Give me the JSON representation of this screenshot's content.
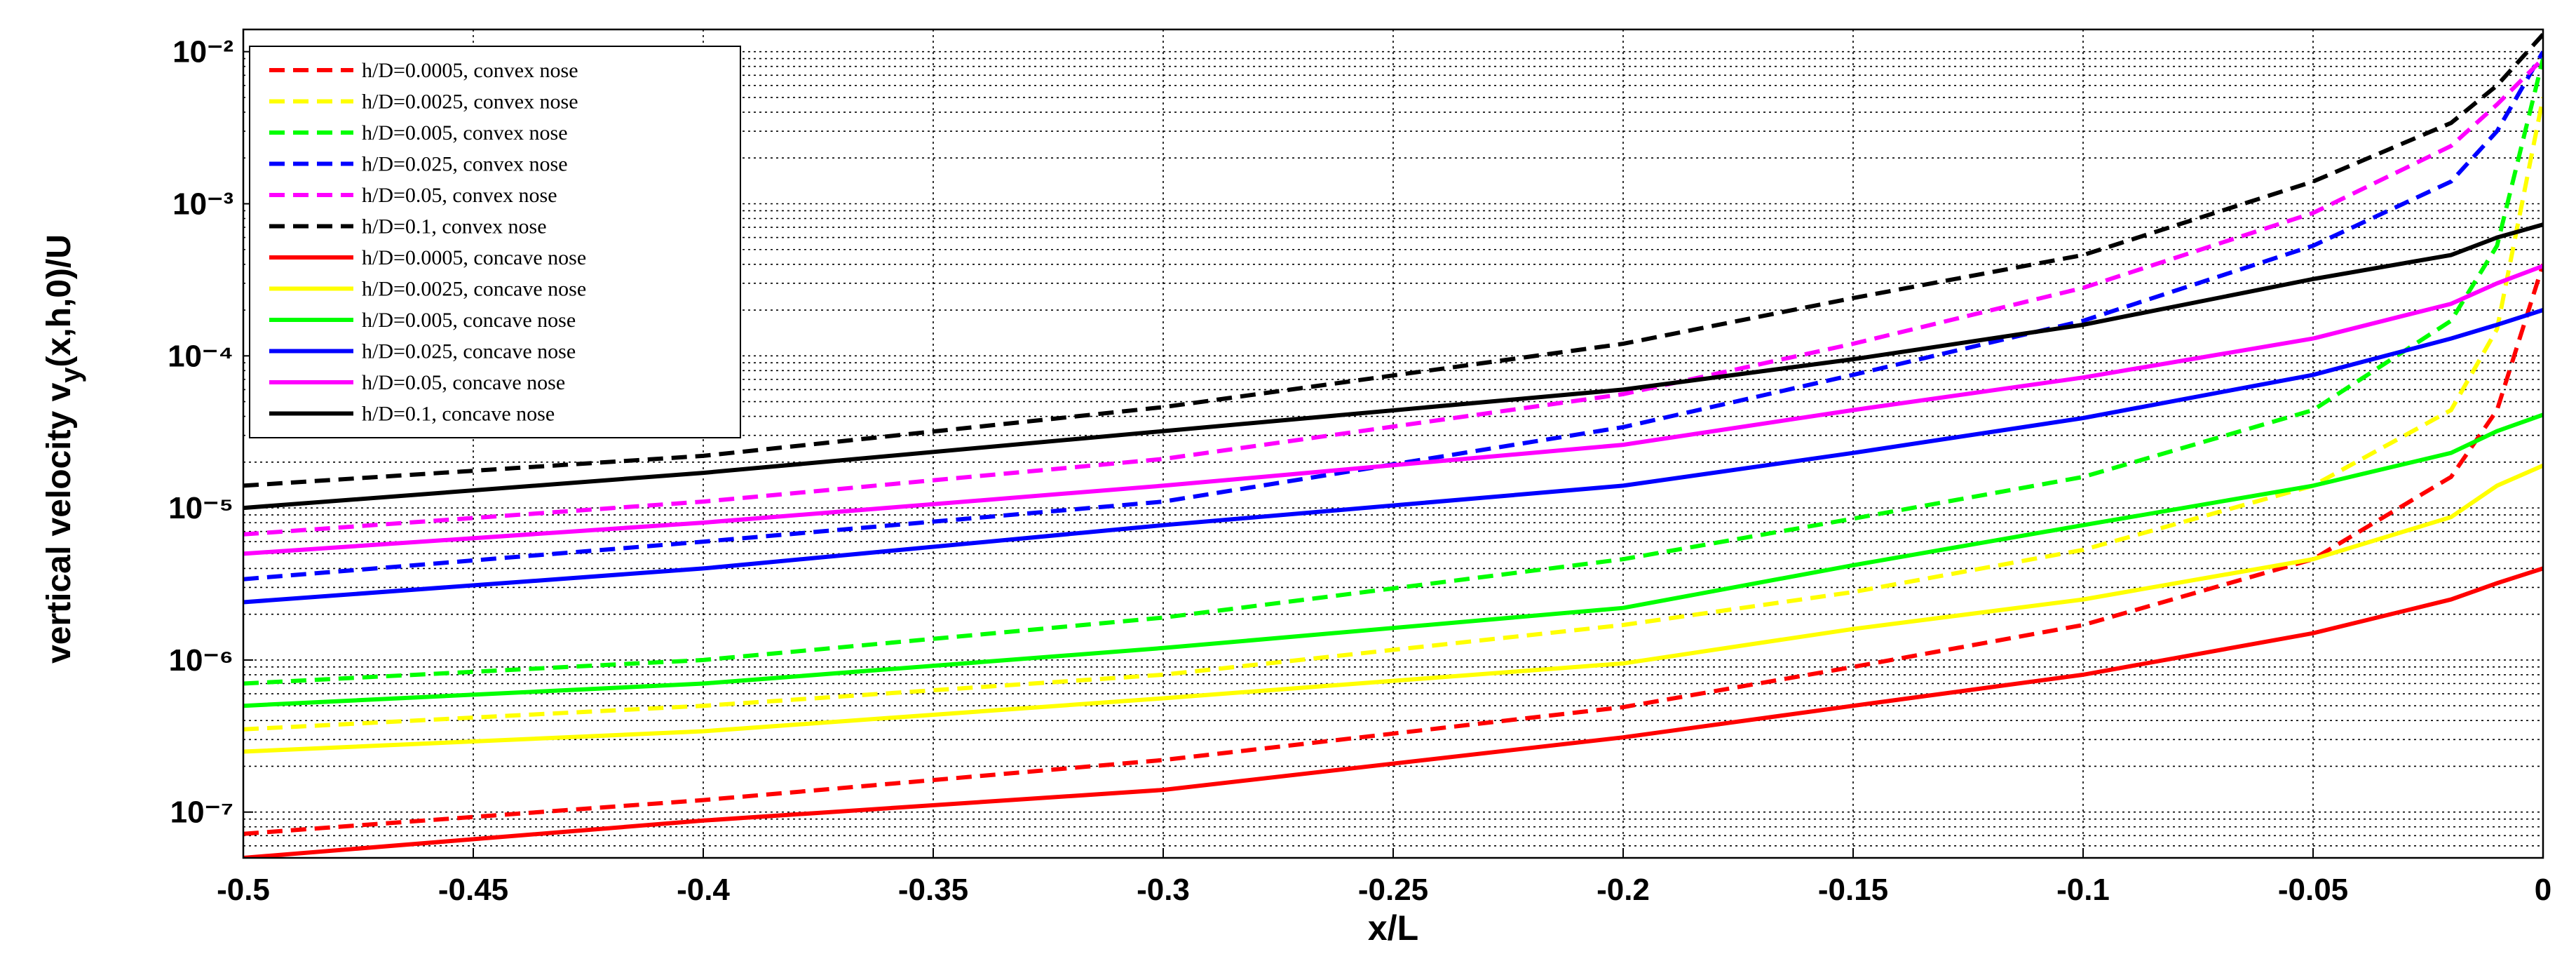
{
  "chart_data": {
    "type": "line",
    "xlabel": "x/L",
    "ylabel": [
      "vertical velocity v",
      "y",
      "(x,h,0)/U"
    ],
    "log_y": true,
    "grid": true,
    "minor_grid": true,
    "legend": "upper left",
    "xlim": [
      -0.5,
      0
    ],
    "xticks": [
      -0.5,
      -0.45,
      -0.4,
      -0.35,
      -0.3,
      -0.25,
      -0.2,
      -0.15,
      -0.1,
      -0.05,
      0
    ],
    "ylim": [
      5e-08,
      0.014
    ],
    "yticks": [
      {
        "value": 1e-07,
        "label": "10⁻⁷"
      },
      {
        "value": 1e-06,
        "label": "10⁻⁶"
      },
      {
        "value": 1e-05,
        "label": "10⁻⁵"
      },
      {
        "value": 0.0001,
        "label": "10⁻⁴"
      },
      {
        "value": 0.001,
        "label": "10⁻³"
      },
      {
        "value": 0.01,
        "label": "10⁻²"
      }
    ],
    "x": [
      -0.5,
      -0.4,
      -0.3,
      -0.2,
      -0.15,
      -0.1,
      -0.05,
      -0.02,
      -0.01,
      0
    ],
    "series": [
      {
        "name": "h/D=0.0005, convex nose",
        "color": "#ff0000",
        "linestyle": "dashed",
        "values": [
          7.2e-08,
          1.2e-07,
          2.2e-07,
          4.9e-07,
          9e-07,
          1.7e-06,
          4.6e-06,
          1.6e-05,
          4.4e-05,
          0.0004
        ]
      },
      {
        "name": "h/D=0.0025, convex nose",
        "color": "#ffff00",
        "linestyle": "dashed",
        "values": [
          3.5e-07,
          5e-07,
          8e-07,
          1.7e-06,
          2.8e-06,
          5.3e-06,
          1.4e-05,
          4.4e-05,
          0.00015,
          0.005
        ]
      },
      {
        "name": "h/D=0.005, convex nose",
        "color": "#00ff00",
        "linestyle": "dashed",
        "values": [
          7e-07,
          1e-06,
          1.9e-06,
          4.6e-06,
          8.5e-06,
          1.6e-05,
          4.4e-05,
          0.00017,
          0.00053,
          0.009
        ]
      },
      {
        "name": "h/D=0.025, convex nose",
        "color": "#0000ff",
        "linestyle": "dashed",
        "values": [
          3.4e-06,
          6e-06,
          1.1e-05,
          3.4e-05,
          7.5e-05,
          0.00017,
          0.00053,
          0.0014,
          0.003,
          0.01
        ]
      },
      {
        "name": "h/D=0.05, convex nose",
        "color": "#ff00ff",
        "linestyle": "dashed",
        "values": [
          6.7e-06,
          1.1e-05,
          2.1e-05,
          5.6e-05,
          0.00012,
          0.00028,
          0.00087,
          0.0024,
          0.0045,
          0.009
        ]
      },
      {
        "name": "h/D=0.1, convex nose",
        "color": "#000000",
        "linestyle": "dashed",
        "values": [
          1.4e-05,
          2.2e-05,
          4.6e-05,
          0.00012,
          0.00024,
          0.00046,
          0.0014,
          0.0034,
          0.006,
          0.013
        ]
      },
      {
        "name": "h/D=0.0005, concave nose",
        "color": "#ff0000",
        "linestyle": "solid",
        "values": [
          5e-08,
          8.8e-08,
          1.4e-07,
          3.1e-07,
          5e-07,
          8e-07,
          1.5e-06,
          2.5e-06,
          3.2e-06,
          4e-06
        ]
      },
      {
        "name": "h/D=0.0025, concave nose",
        "color": "#ffff00",
        "linestyle": "solid",
        "values": [
          2.5e-07,
          3.4e-07,
          5.6e-07,
          9.5e-07,
          1.6e-06,
          2.5e-06,
          4.6e-06,
          8.7e-06,
          1.4e-05,
          1.9e-05
        ]
      },
      {
        "name": "h/D=0.005, concave nose",
        "color": "#00ff00",
        "linestyle": "solid",
        "values": [
          5e-07,
          7e-07,
          1.2e-06,
          2.2e-06,
          4.2e-06,
          7.7e-06,
          1.4e-05,
          2.3e-05,
          3.2e-05,
          4.1e-05
        ]
      },
      {
        "name": "h/D=0.025, concave nose",
        "color": "#0000ff",
        "linestyle": "solid",
        "values": [
          2.4e-06,
          4e-06,
          7.7e-06,
          1.4e-05,
          2.3e-05,
          3.9e-05,
          7.5e-05,
          0.00013,
          0.00016,
          0.0002
        ]
      },
      {
        "name": "h/D=0.05, concave nose",
        "color": "#ff00ff",
        "linestyle": "solid",
        "values": [
          5e-06,
          8e-06,
          1.4e-05,
          2.6e-05,
          4.4e-05,
          7.2e-05,
          0.00013,
          0.00022,
          0.0003,
          0.00039
        ]
      },
      {
        "name": "h/D=0.1, concave nose",
        "color": "#000000",
        "linestyle": "solid",
        "values": [
          1e-05,
          1.7e-05,
          3.2e-05,
          6e-05,
          9.5e-05,
          0.00016,
          0.00032,
          0.00046,
          0.0006,
          0.00073
        ]
      }
    ]
  }
}
